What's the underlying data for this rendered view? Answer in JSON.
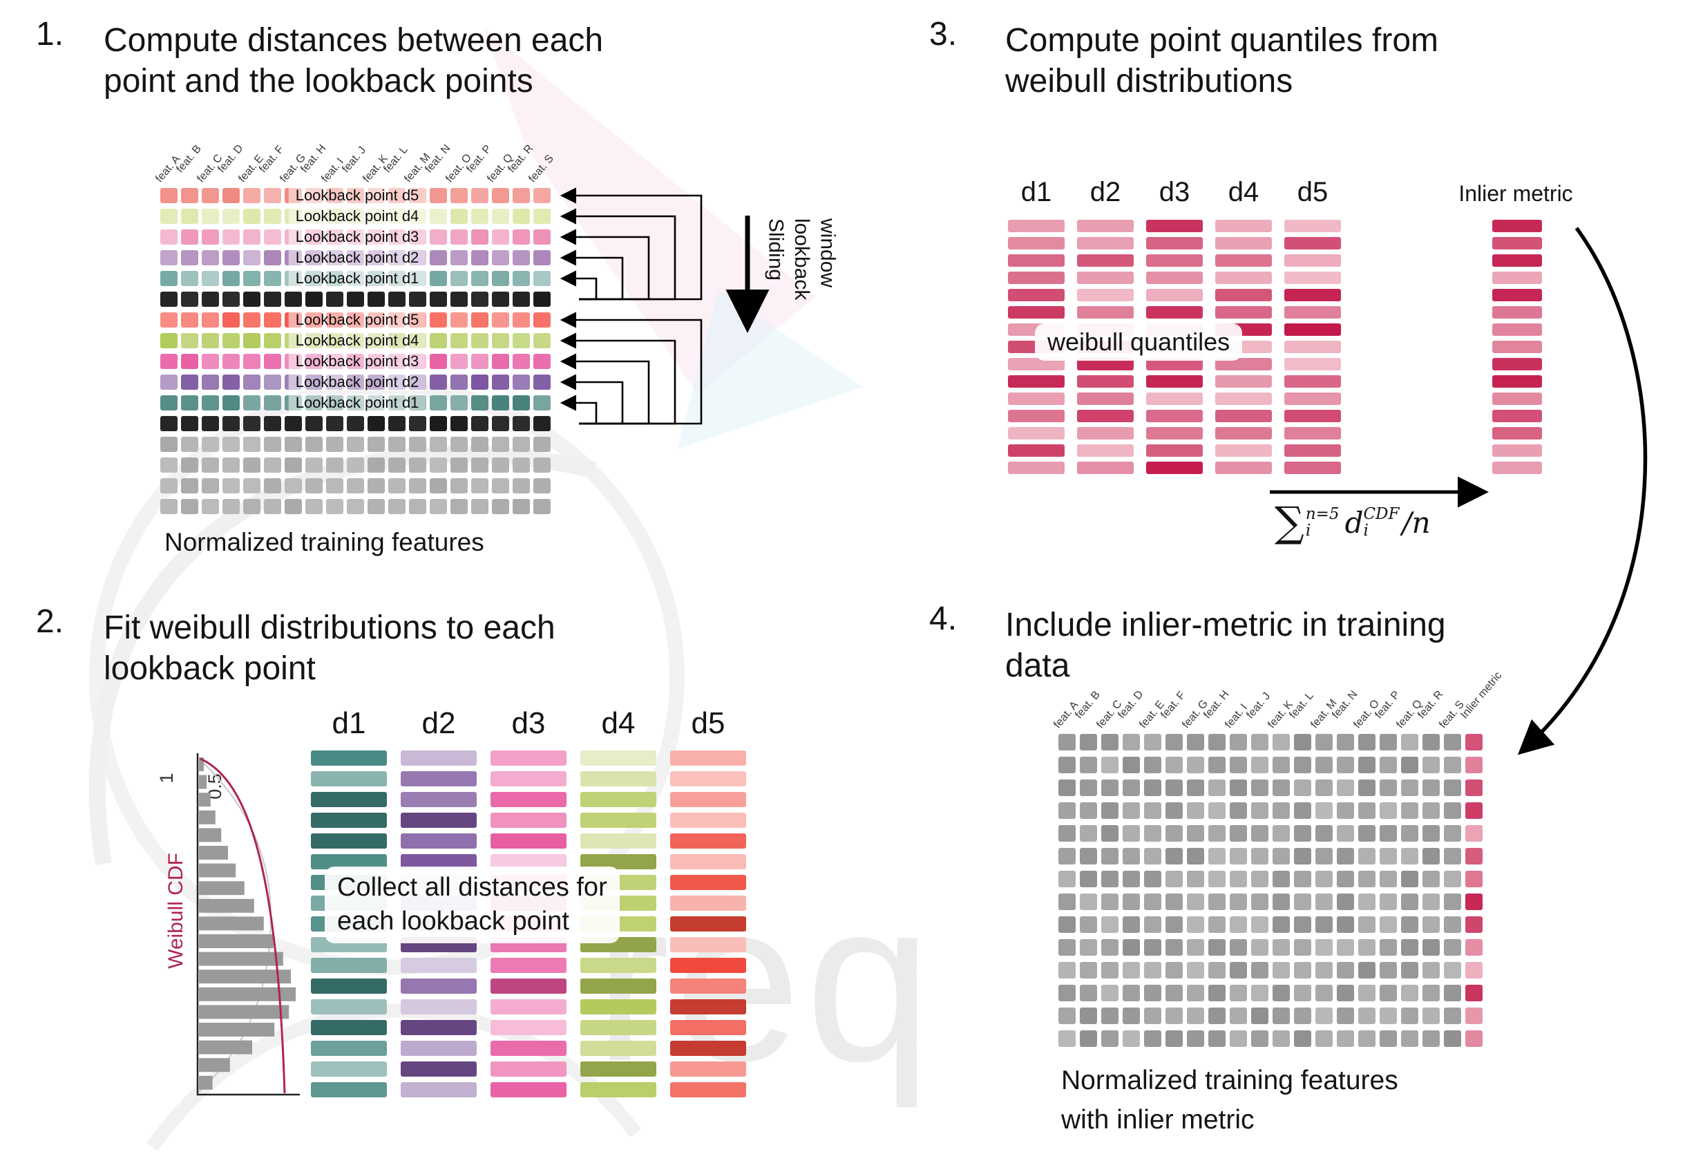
{
  "watermark": {
    "text": "req"
  },
  "features": [
    "feat. A",
    "feat. B",
    "feat. C",
    "feat. D",
    "feat. E",
    "feat. F",
    "feat. G",
    "feat. H",
    "feat. I",
    "feat. J",
    "feat. K",
    "feat. L",
    "feat. M",
    "feat. N",
    "feat. O",
    "feat. P",
    "feat. Q",
    "feat. R",
    "feat. S"
  ],
  "panel1": {
    "number": "1.",
    "title_lines": [
      "Compute distances between each",
      "point and the lookback points"
    ],
    "caption": "Normalized training features",
    "sliding_window_label": "Sliding\nlookback\nwindow",
    "block1_rows": [
      {
        "label": "Lookback point d5",
        "color": "#f0867d"
      },
      {
        "label": "Lookback point d4",
        "color": "#dde8a9"
      },
      {
        "label": "Lookback point d3",
        "color": "#ee90b7"
      },
      {
        "label": "Lookback point d2",
        "color": "#a77fb6"
      },
      {
        "label": "Lookback point d1",
        "color": "#74a7a2"
      }
    ],
    "block2_rows": [
      {
        "label": "Lookback point d5",
        "color": "#f5564a"
      },
      {
        "label": "Lookback point d4",
        "color": "#adc852"
      },
      {
        "label": "Lookback point d3",
        "color": "#e75ba2"
      },
      {
        "label": "Lookback point d2",
        "color": "#7c55a0"
      },
      {
        "label": "Lookback point d1",
        "color": "#46837c"
      }
    ],
    "query_row_color": "#1b1b1b",
    "unprocessed_row_color": "#a9a9a9",
    "unprocessed_rows": 4
  },
  "panel2": {
    "number": "2.",
    "title_lines": [
      "Fit weibull distributions to each",
      "lookback point"
    ],
    "overlay_lines": [
      "Collect all distances for",
      "each lookback point"
    ],
    "mini_chart": {
      "axis_label": "Weibull CDF",
      "tick_labels": [
        "1",
        "0.5"
      ],
      "curve_color": "#b0254a",
      "bar_color": "#9a9a9a",
      "bar_lengths": [
        5,
        8,
        12,
        17,
        23,
        30,
        38,
        47,
        57,
        67,
        77,
        87,
        95,
        100,
        93,
        78,
        55,
        32,
        14
      ]
    },
    "columns": [
      {
        "label": "d1",
        "color": "#3f837c"
      },
      {
        "label": "d2",
        "color": "#7b559c"
      },
      {
        "label": "d3",
        "color": "#e8579f"
      },
      {
        "label": "d4",
        "color": "#b3c95a"
      },
      {
        "label": "d5",
        "color": "#f0493c"
      }
    ],
    "bars_per_column": 17
  },
  "panel3": {
    "number": "3.",
    "title_lines": [
      "Compute point quantiles from",
      "weibull distributions"
    ],
    "column_labels": [
      "d1",
      "d2",
      "d3",
      "d4",
      "d5"
    ],
    "overlay": "weibull quantiles",
    "inlier_label": "Inlier metric",
    "bar_palette": {
      "dark": "#c2184a",
      "light": "#f6ccd4"
    },
    "bars_per_column": 15,
    "formula": {
      "sum": "∑",
      "upper": "n=5",
      "lower": "i",
      "variable": "d",
      "var_sub": "i",
      "var_sup": "CDF",
      "divisor": "/n"
    }
  },
  "panel4": {
    "number": "4.",
    "title_lines": [
      "Include inlier-metric in training",
      "data"
    ],
    "caption_lines": [
      "Normalized training features",
      "with inlier metric"
    ],
    "inlier_header": "Inlier metric",
    "rows": 14,
    "cell_color": "#9e9e9e",
    "inlier_palette": {
      "dark": "#c2184a",
      "light": "#f6ccd4"
    }
  }
}
